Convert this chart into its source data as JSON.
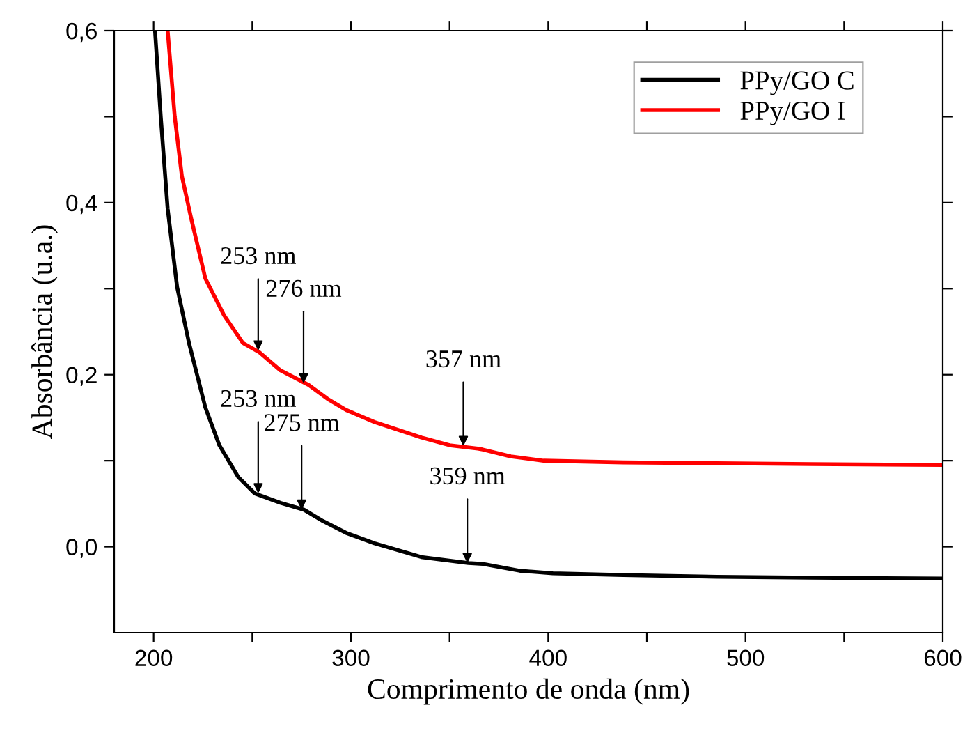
{
  "chart_data": {
    "type": "line",
    "xlabel": "Comprimento de onda (nm)",
    "ylabel": "Absorbância (u.a.)",
    "xlim": [
      180,
      600
    ],
    "ylim": [
      -0.1,
      0.6
    ],
    "xticks": [
      200,
      {
        "value": 250,
        "label": null
      },
      300,
      {
        "value": 350,
        "label": null
      },
      400,
      {
        "value": 450,
        "label": null
      },
      500,
      {
        "value": 550,
        "label": null
      },
      600
    ],
    "yticks": [
      {
        "value": 0.0,
        "label": "0,0"
      },
      {
        "value": 0.1,
        "label": null
      },
      {
        "value": 0.2,
        "label": "0,2"
      },
      {
        "value": 0.3,
        "label": null
      },
      {
        "value": 0.4,
        "label": "0,4"
      },
      {
        "value": 0.5,
        "label": null
      },
      {
        "value": 0.6,
        "label": "0,6"
      }
    ],
    "grid": false,
    "legend": "top right",
    "line_style": "solid",
    "marker": "none",
    "series": [
      {
        "name": "PPy/GO C",
        "color": "#000000",
        "x": [
          200.7,
          203.6,
          207.1,
          211.9,
          217.9,
          226.2,
          233.3,
          242.9,
          251.2,
          264.3,
          276.2,
          285.7,
          297.6,
          311.9,
          335.7,
          359.5,
          366.8,
          385.7,
          402.4,
          438,
          485.5,
          533,
          600
        ],
        "values": [
          0.6,
          0.5,
          0.393,
          0.302,
          0.237,
          0.162,
          0.118,
          0.081,
          0.062,
          0.051,
          0.043,
          0.03,
          0.016,
          0.004,
          -0.012,
          -0.019,
          -0.02,
          -0.028,
          -0.031,
          -0.033,
          -0.035,
          -0.036,
          -0.037
        ]
      },
      {
        "name": "PPy/GO I",
        "color": "#ff0000",
        "x": [
          207.1,
          210.7,
          214.3,
          219,
          226.2,
          235.7,
          245.2,
          253.6,
          264.3,
          278.6,
          288.1,
          297.6,
          311.9,
          335.7,
          350,
          364.3,
          366.8,
          381,
          397.6,
          438,
          485.5,
          533,
          600
        ],
        "values": [
          0.6,
          0.5,
          0.431,
          0.382,
          0.312,
          0.269,
          0.237,
          0.226,
          0.205,
          0.188,
          0.172,
          0.159,
          0.145,
          0.127,
          0.118,
          0.114,
          0.113,
          0.105,
          0.1,
          0.098,
          0.097,
          0.096,
          0.095
        ]
      }
    ],
    "annotations": [
      {
        "text": "253 nm",
        "x": 253,
        "y": 0.228
      },
      {
        "text": "276 nm",
        "x": 276,
        "y": 0.19
      },
      {
        "text": "357 nm",
        "x": 357,
        "y": 0.117
      },
      {
        "text": "253 nm",
        "x": 253,
        "y": 0.062
      },
      {
        "text": "275 nm",
        "x": 275,
        "y": 0.043
      },
      {
        "text": "359 nm",
        "x": 359,
        "y": -0.019
      }
    ]
  }
}
